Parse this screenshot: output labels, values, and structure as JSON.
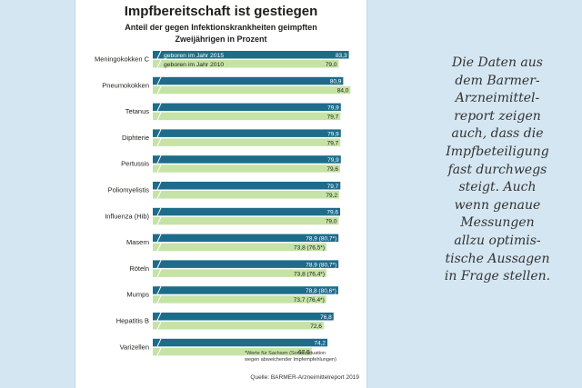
{
  "card": {
    "title": "Impfbereitschaft ist gestiegen",
    "subtitle_line1": "Anteil der gegen Infektionskrankheiten geimpften",
    "subtitle_line2": "Zweijährigen in Prozent",
    "footnote_line1": "*Werte für Sachsen (Sondersituation",
    "footnote_line2": "wegen abweichender Impfempfehlungen)",
    "source": "Quelle: BARMER-Arzneimittelreport 2019"
  },
  "side_text": {
    "lines": [
      "Die Daten aus",
      "dem Barmer-",
      "Arzneimittel-",
      "report zeigen",
      "auch, dass die",
      "Impfbeteiligung",
      "fast durchwegs",
      "steigt. Auch",
      "wenn genaue",
      "Messungen",
      "allzu optimis-",
      "tische Aussagen",
      "in Frage stellen."
    ]
  },
  "colors": {
    "series_2015": "#1d6c8a",
    "series_2010": "#c5e3a6",
    "background": "#d4e6f1"
  },
  "chart_data": {
    "type": "bar",
    "orientation": "horizontal",
    "title": "Impfbereitschaft ist gestiegen",
    "categories": [
      "Meningokokken C",
      "Pneumokokken",
      "Tetanus",
      "Diphterie",
      "Pertussis",
      "Poliomyelistis",
      "Influenza (Hib)",
      "Masern",
      "Röteln",
      "Mumps",
      "Hepatitis B",
      "Varizellen"
    ],
    "series": [
      {
        "name": "geboren im Jahr 2015",
        "values": [
          83.3,
          80.9,
          79.9,
          79.9,
          79.9,
          79.7,
          79.6,
          78.9,
          78.9,
          78.8,
          76.8,
          74.2
        ],
        "labels": [
          "83,3",
          "80,9",
          "79,9",
          "79,9",
          "79,9",
          "79,7",
          "79,6",
          "78,9 (80,7*)",
          "78,9 (80,7*)",
          "78,8 (80,6*)",
          "76,8",
          "74,2"
        ]
      },
      {
        "name": "geboren im Jahr 2010",
        "values": [
          79.0,
          84.0,
          79.7,
          79.7,
          79.6,
          79.2,
          79.0,
          73.8,
          73.8,
          73.7,
          72.6,
          67.5
        ],
        "labels": [
          "79,0",
          "84,0",
          "79,7",
          "79,7",
          "79,6",
          "79,2",
          "79,0",
          "73,8 (76,5*)",
          "73,8 (76,4*)",
          "73,7 (76,4*)",
          "72,6",
          "67,5"
        ]
      }
    ],
    "xlim": [
      0,
      85
    ],
    "grid": false,
    "legend": "inside-first-bars"
  }
}
